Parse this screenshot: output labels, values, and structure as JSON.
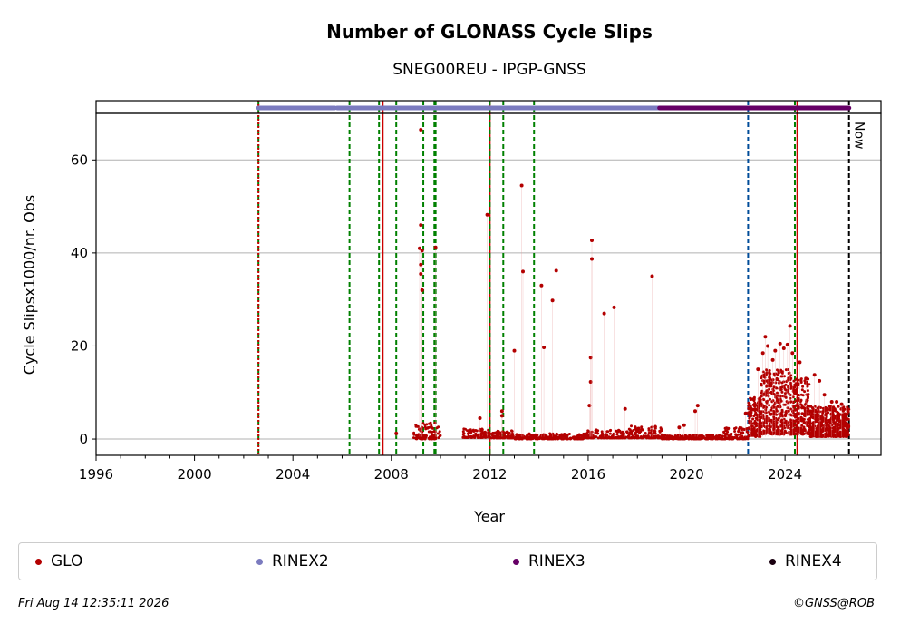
{
  "chart_data": {
    "type": "scatter",
    "title": "Number of GLONASS Cycle Slips",
    "subtitle": "SNEG00REU - IPGP-GNSS",
    "xlabel": "Year",
    "ylabel": "Cycle Slipsx1000/nr. Obs",
    "xlim": [
      1996,
      2027.9
    ],
    "ylim": [
      -3.5,
      70
    ],
    "xticks": [
      "1996",
      "2000",
      "2004",
      "2008",
      "2012",
      "2016",
      "2020",
      "2024"
    ],
    "xtick_values": [
      1996,
      2000,
      2004,
      2008,
      2012,
      2016,
      2020,
      2024
    ],
    "yticks": [
      "0",
      "20",
      "40",
      "60"
    ],
    "ytick_values": [
      0,
      20,
      40,
      60
    ],
    "grid": "horizontal",
    "now_label": "Now",
    "now_x": 2026.6,
    "series": [
      {
        "name": "GLO",
        "color": "#b30000",
        "outliers": [
          [
            2008.2,
            1.2
          ],
          [
            2009.2,
            66.5
          ],
          [
            2009.2,
            46.0
          ],
          [
            2009.15,
            41.0
          ],
          [
            2009.25,
            40.5
          ],
          [
            2009.2,
            37.5
          ],
          [
            2009.2,
            35.5
          ],
          [
            2009.25,
            32.0
          ],
          [
            2009.8,
            41.2
          ],
          [
            2011.6,
            4.5
          ],
          [
            2011.9,
            48.2
          ],
          [
            2012.5,
            6.0
          ],
          [
            2012.5,
            5.0
          ],
          [
            2013.0,
            19.0
          ],
          [
            2013.3,
            54.5
          ],
          [
            2013.35,
            36.0
          ],
          [
            2014.1,
            33.0
          ],
          [
            2014.2,
            19.7
          ],
          [
            2014.55,
            29.8
          ],
          [
            2014.7,
            36.2
          ],
          [
            2016.05,
            7.2
          ],
          [
            2016.1,
            17.5
          ],
          [
            2016.1,
            12.3
          ],
          [
            2016.15,
            42.7
          ],
          [
            2016.15,
            38.7
          ],
          [
            2016.65,
            27.0
          ],
          [
            2017.05,
            28.3
          ],
          [
            2017.5,
            6.5
          ],
          [
            2018.6,
            35.0
          ],
          [
            2019.7,
            2.5
          ],
          [
            2019.9,
            3.0
          ],
          [
            2020.35,
            6.0
          ],
          [
            2020.45,
            7.2
          ],
          [
            2022.4,
            5.5
          ],
          [
            2022.6,
            5.0
          ],
          [
            2022.9,
            15.0
          ],
          [
            2023.1,
            18.5
          ],
          [
            2023.2,
            22.0
          ],
          [
            2023.3,
            20.0
          ],
          [
            2023.5,
            17.0
          ],
          [
            2023.6,
            19.0
          ],
          [
            2023.8,
            20.5
          ],
          [
            2023.95,
            19.5
          ],
          [
            2024.1,
            20.3
          ],
          [
            2024.2,
            24.3
          ],
          [
            2024.3,
            18.5
          ],
          [
            2024.6,
            16.5
          ],
          [
            2024.85,
            13.0
          ],
          [
            2025.2,
            13.8
          ],
          [
            2025.4,
            12.5
          ],
          [
            2025.6,
            9.5
          ],
          [
            2025.9,
            8.0
          ],
          [
            2026.1,
            8.0
          ],
          [
            2026.3,
            7.5
          ]
        ],
        "dense_segments": [
          {
            "x_start": 2008.9,
            "x_end": 2010.0,
            "low": 0.0,
            "high": 3.5
          },
          {
            "x_start": 2010.9,
            "x_end": 2012.0,
            "low": 0.3,
            "high": 2.2
          },
          {
            "x_start": 2012.0,
            "x_end": 2013.0,
            "low": 0.2,
            "high": 1.8
          },
          {
            "x_start": 2013.0,
            "x_end": 2015.9,
            "low": 0.0,
            "high": 1.2
          },
          {
            "x_start": 2015.9,
            "x_end": 2017.5,
            "low": 0.2,
            "high": 2.0
          },
          {
            "x_start": 2017.5,
            "x_end": 2019.0,
            "low": 0.2,
            "high": 2.8
          },
          {
            "x_start": 2019.0,
            "x_end": 2021.5,
            "low": 0.0,
            "high": 0.9
          },
          {
            "x_start": 2021.5,
            "x_end": 2022.5,
            "low": 0.0,
            "high": 2.5
          },
          {
            "x_start": 2022.5,
            "x_end": 2023.0,
            "low": 0.5,
            "high": 9.0
          },
          {
            "x_start": 2023.0,
            "x_end": 2024.3,
            "low": 1.0,
            "high": 15.0
          },
          {
            "x_start": 2024.3,
            "x_end": 2025.0,
            "low": 1.0,
            "high": 13.0
          },
          {
            "x_start": 2025.0,
            "x_end": 2026.6,
            "low": 0.5,
            "high": 7.0
          }
        ]
      },
      {
        "name": "RINEX2",
        "color": "#7b7bbf",
        "segments": [
          [
            2002.6,
            2005.7
          ],
          [
            2005.8,
            2018.9
          ]
        ]
      },
      {
        "name": "RINEX3",
        "color": "#660066",
        "segments": [
          [
            2018.9,
            2026.6
          ]
        ]
      },
      {
        "name": "RINEX4",
        "color": "#1a0010",
        "segments": []
      }
    ],
    "vlines": [
      {
        "x": 2002.6,
        "color": "#008000",
        "style": "dashed"
      },
      {
        "x": 2002.6,
        "color": "#cc0000",
        "style": "dotted"
      },
      {
        "x": 2006.3,
        "color": "#008000",
        "style": "dashed"
      },
      {
        "x": 2007.5,
        "color": "#008000",
        "style": "dashed"
      },
      {
        "x": 2007.65,
        "color": "#cc0000",
        "style": "solid"
      },
      {
        "x": 2008.2,
        "color": "#008000",
        "style": "dashed"
      },
      {
        "x": 2009.3,
        "color": "#008000",
        "style": "dashed"
      },
      {
        "x": 2009.75,
        "color": "#008000",
        "style": "dashed"
      },
      {
        "x": 2009.8,
        "color": "#008000",
        "style": "dashed"
      },
      {
        "x": 2012.0,
        "color": "#cc0000",
        "style": "solid"
      },
      {
        "x": 2012.0,
        "color": "#008000",
        "style": "dashed"
      },
      {
        "x": 2012.55,
        "color": "#008000",
        "style": "dashed"
      },
      {
        "x": 2013.8,
        "color": "#008000",
        "style": "dashed"
      },
      {
        "x": 2022.5,
        "color": "#004c99",
        "style": "dashed"
      },
      {
        "x": 2024.4,
        "color": "#008000",
        "style": "dashed"
      },
      {
        "x": 2024.5,
        "color": "#cc0000",
        "style": "solid"
      },
      {
        "x": 2026.6,
        "color": "#000000",
        "style": "dashed"
      }
    ],
    "legend_placement": "bottom"
  },
  "legend": [
    {
      "label": "GLO",
      "color": "#b30000"
    },
    {
      "label": "RINEX2",
      "color": "#7b7bbf"
    },
    {
      "label": "RINEX3",
      "color": "#660066"
    },
    {
      "label": "RINEX4",
      "color": "#1a0010"
    }
  ],
  "footer": {
    "timestamp": "Fri Aug 14 12:35:11 2026",
    "credit": "©GNSS@ROB"
  }
}
